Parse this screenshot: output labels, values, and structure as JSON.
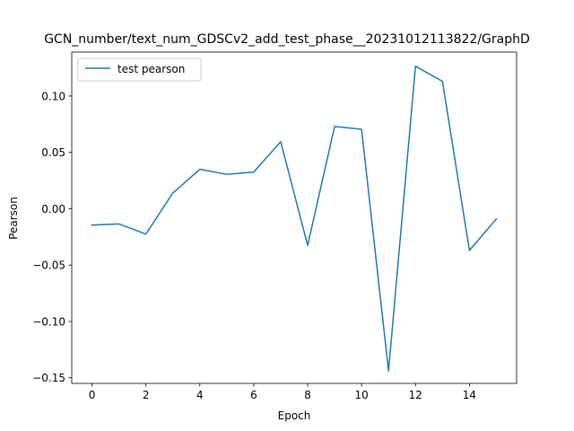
{
  "chart_data": {
    "type": "line",
    "title": "GCN_number/text_num_GDSCv2_add_test_phase__20231012113822/GraphD",
    "xlabel": "Epoch",
    "ylabel": "Pearson",
    "xlim": [
      -0.75,
      15.75
    ],
    "ylim": [
      -0.155,
      0.139
    ],
    "x_ticks": [
      0,
      2,
      4,
      6,
      8,
      10,
      12,
      14
    ],
    "y_ticks": [
      -0.15,
      -0.1,
      -0.05,
      0.0,
      0.05,
      0.1
    ],
    "y_tick_labels": [
      "−0.15",
      "−0.10",
      "−0.05",
      "0.00",
      "0.05",
      "0.10"
    ],
    "grid": false,
    "legend_position": "top-left",
    "series": [
      {
        "name": "test pearson",
        "color": "#1f77b4",
        "x": [
          0,
          1,
          2,
          3,
          4,
          5,
          6,
          7,
          8,
          9,
          10,
          11,
          12,
          13,
          14,
          15
        ],
        "values": [
          -0.0145,
          -0.0135,
          -0.0225,
          0.014,
          0.035,
          0.0305,
          0.0325,
          0.0595,
          -0.0325,
          0.073,
          0.0705,
          -0.144,
          0.1265,
          0.113,
          -0.037,
          -0.009
        ]
      }
    ]
  }
}
